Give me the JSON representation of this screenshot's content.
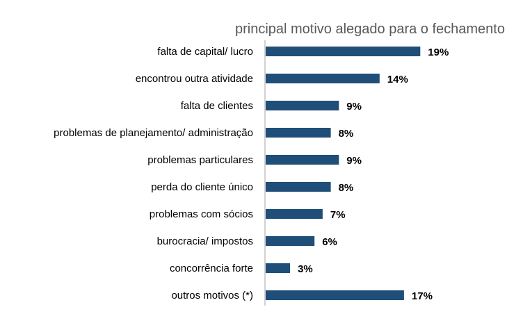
{
  "chart_data": {
    "type": "bar",
    "orientation": "horizontal",
    "title": "principal motivo alegado para o fechamento",
    "categories": [
      "falta de capital/ lucro",
      "encontrou outra atividade",
      "falta de clientes",
      "problemas de planejamento/ administração",
      "problemas particulares",
      "perda do cliente único",
      "problemas com sócios",
      "burocracia/ impostos",
      "concorrência forte",
      "outros motivos (*)"
    ],
    "values": [
      19,
      14,
      9,
      8,
      9,
      8,
      7,
      6,
      3,
      17
    ],
    "data_labels": [
      "19%",
      "14%",
      "9%",
      "8%",
      "9%",
      "8%",
      "7%",
      "6%",
      "3%",
      "17%"
    ],
    "value_unit": "%",
    "xlim": [
      0,
      25
    ],
    "grid": false,
    "legend": "none",
    "colors": {
      "bar": "#1F4E79",
      "axis": "#A6A6A6",
      "title": "#595959"
    }
  }
}
